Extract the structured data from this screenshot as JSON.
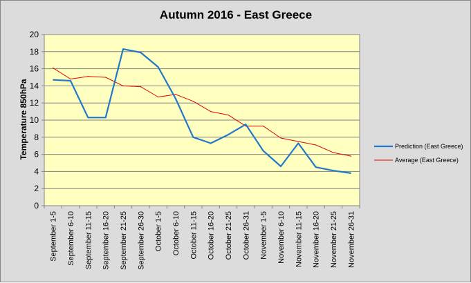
{
  "chart_data": {
    "type": "line",
    "title": "Autumn 2016 - East Greece",
    "xlabel": "",
    "ylabel": "Temperature 850hPa",
    "ylim": [
      0,
      20
    ],
    "ytick_step": 2,
    "grid": true,
    "legend_position": "right",
    "plot_background": "#ffffc0",
    "frame_background": "#dcdcdc",
    "categories": [
      "September 1-5",
      "September 6-10",
      "September 11-15",
      "September 16-20",
      "September 21-25",
      "September 26-30",
      "October 1-5",
      "October 6-10",
      "October 11-15",
      "October 16-20",
      "October 21-25",
      "October 26-31",
      "November 1-5",
      "November 6-10",
      "November 11-15",
      "November 16-20",
      "November 21-25",
      "November 26-31"
    ],
    "series": [
      {
        "name": "Prediction (East Greece)",
        "color": "#1f78c8",
        "values": [
          14.7,
          14.6,
          10.3,
          10.3,
          18.3,
          17.9,
          16.2,
          12.5,
          8.0,
          7.3,
          8.3,
          9.5,
          6.4,
          4.6,
          7.3,
          4.5,
          4.1,
          3.8
        ]
      },
      {
        "name": "Average (East Greece)",
        "color": "#e00000",
        "values": [
          16.1,
          14.8,
          15.1,
          15.0,
          14.0,
          13.9,
          12.7,
          13.0,
          12.2,
          11.0,
          10.6,
          9.3,
          9.3,
          7.9,
          7.5,
          7.1,
          6.2,
          5.8
        ]
      }
    ]
  }
}
